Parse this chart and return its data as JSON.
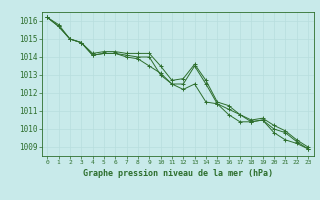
{
  "title": "Graphe pression niveau de la mer (hPa)",
  "background_color": "#c8eaea",
  "grid_color": "#b8dede",
  "line_color": "#2d6e2d",
  "x_labels": [
    "0",
    "1",
    "2",
    "3",
    "4",
    "5",
    "6",
    "7",
    "8",
    "9",
    "10",
    "11",
    "12",
    "13",
    "14",
    "15",
    "16",
    "17",
    "18",
    "19",
    "20",
    "21",
    "22",
    "23"
  ],
  "ylim": [
    1008.5,
    1016.5
  ],
  "yticks": [
    1009,
    1010,
    1011,
    1012,
    1013,
    1014,
    1015,
    1016
  ],
  "series1": [
    1016.2,
    1015.7,
    1015.0,
    1014.8,
    1014.1,
    1014.2,
    1014.2,
    1014.1,
    1014.0,
    1014.0,
    1013.0,
    1012.5,
    1012.5,
    1013.5,
    1012.5,
    1011.4,
    1011.1,
    1010.8,
    1010.4,
    1010.5,
    1010.0,
    1009.8,
    1009.3,
    1008.9
  ],
  "series2": [
    1016.2,
    1015.7,
    1015.0,
    1014.8,
    1014.1,
    1014.2,
    1014.2,
    1014.0,
    1013.9,
    1013.5,
    1013.1,
    1012.5,
    1012.2,
    1012.5,
    1011.5,
    1011.4,
    1010.8,
    1010.4,
    1010.4,
    1010.5,
    1009.8,
    1009.4,
    1009.2,
    1008.9
  ],
  "series3": [
    1016.2,
    1015.8,
    1015.0,
    1014.8,
    1014.2,
    1014.3,
    1014.3,
    1014.2,
    1014.2,
    1014.2,
    1013.5,
    1012.7,
    1012.8,
    1013.6,
    1012.7,
    1011.5,
    1011.3,
    1010.8,
    1010.5,
    1010.6,
    1010.2,
    1009.9,
    1009.4,
    1009.0
  ],
  "figsize": [
    3.2,
    2.0
  ],
  "dpi": 100
}
